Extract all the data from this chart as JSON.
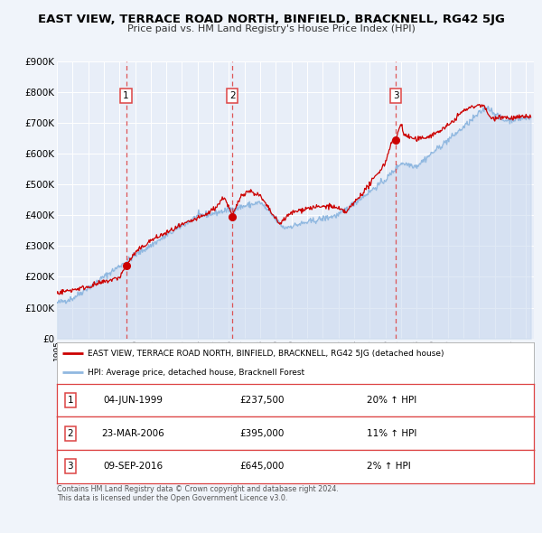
{
  "title": "EAST VIEW, TERRACE ROAD NORTH, BINFIELD, BRACKNELL, RG42 5JG",
  "subtitle": "Price paid vs. HM Land Registry's House Price Index (HPI)",
  "title_fontsize": 10,
  "subtitle_fontsize": 8.5,
  "bg_color": "#f0f4fa",
  "plot_bg_color": "#e8eef8",
  "grid_color": "#ffffff",
  "red_line_color": "#cc0000",
  "blue_line_color": "#90b8e0",
  "blue_fill_color": "#c8d8ee",
  "ylim": [
    0,
    900000
  ],
  "yticks": [
    0,
    100000,
    200000,
    300000,
    400000,
    500000,
    600000,
    700000,
    800000,
    900000
  ],
  "ytick_labels": [
    "£0",
    "£100K",
    "£200K",
    "£300K",
    "£400K",
    "£500K",
    "£600K",
    "£700K",
    "£800K",
    "£900K"
  ],
  "xmin": 1995.0,
  "xmax": 2025.5,
  "sale_markers": [
    {
      "year": 1999.42,
      "value": 237500,
      "label": "1"
    },
    {
      "year": 2006.22,
      "value": 395000,
      "label": "2"
    },
    {
      "year": 2016.67,
      "value": 645000,
      "label": "3"
    }
  ],
  "vline_color": "#dd4444",
  "legend_red_label": "EAST VIEW, TERRACE ROAD NORTH, BINFIELD, BRACKNELL, RG42 5JG (detached house)",
  "legend_blue_label": "HPI: Average price, detached house, Bracknell Forest",
  "table_rows": [
    {
      "num": "1",
      "date": "04-JUN-1999",
      "price": "£237,500",
      "change": "20% ↑ HPI"
    },
    {
      "num": "2",
      "date": "23-MAR-2006",
      "price": "£395,000",
      "change": "11% ↑ HPI"
    },
    {
      "num": "3",
      "date": "09-SEP-2016",
      "price": "£645,000",
      "change": "2% ↑ HPI"
    }
  ],
  "footer_text": "Contains HM Land Registry data © Crown copyright and database right 2024.\nThis data is licensed under the Open Government Licence v3.0."
}
